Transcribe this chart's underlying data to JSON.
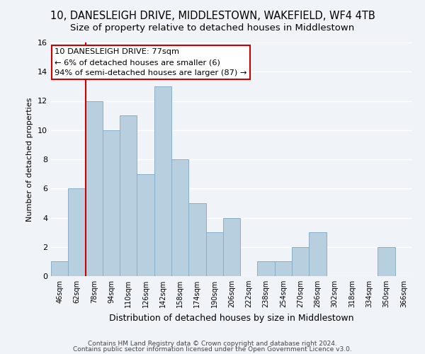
{
  "title": "10, DANESLEIGH DRIVE, MIDDLESTOWN, WAKEFIELD, WF4 4TB",
  "subtitle": "Size of property relative to detached houses in Middlestown",
  "xlabel": "Distribution of detached houses by size in Middlestown",
  "ylabel": "Number of detached properties",
  "bar_labels": [
    "46sqm",
    "62sqm",
    "78sqm",
    "94sqm",
    "110sqm",
    "126sqm",
    "142sqm",
    "158sqm",
    "174sqm",
    "190sqm",
    "206sqm",
    "222sqm",
    "238sqm",
    "254sqm",
    "270sqm",
    "286sqm",
    "302sqm",
    "318sqm",
    "334sqm",
    "350sqm",
    "366sqm"
  ],
  "bar_values": [
    1,
    6,
    12,
    10,
    11,
    7,
    13,
    8,
    5,
    3,
    4,
    0,
    1,
    1,
    2,
    3,
    0,
    0,
    0,
    2,
    0
  ],
  "bar_color": "#b8cfe0",
  "bar_edge_color": "#8aaec8",
  "highlight_bar_index": 2,
  "highlight_color": "#cc0000",
  "annotation_title": "10 DANESLEIGH DRIVE: 77sqm",
  "annotation_line1": "← 6% of detached houses are smaller (6)",
  "annotation_line2": "94% of semi-detached houses are larger (87) →",
  "annotation_box_color": "#ffffff",
  "annotation_box_edge": "#cc0000",
  "ylim": [
    0,
    16
  ],
  "yticks": [
    0,
    2,
    4,
    6,
    8,
    10,
    12,
    14,
    16
  ],
  "footer1": "Contains HM Land Registry data © Crown copyright and database right 2024.",
  "footer2": "Contains public sector information licensed under the Open Government Licence v3.0.",
  "bg_color": "#f0f4f8",
  "grid_color": "#ffffff",
  "title_fontsize": 10.5,
  "subtitle_fontsize": 9.5,
  "ylabel_fontsize": 8,
  "xlabel_fontsize": 9
}
